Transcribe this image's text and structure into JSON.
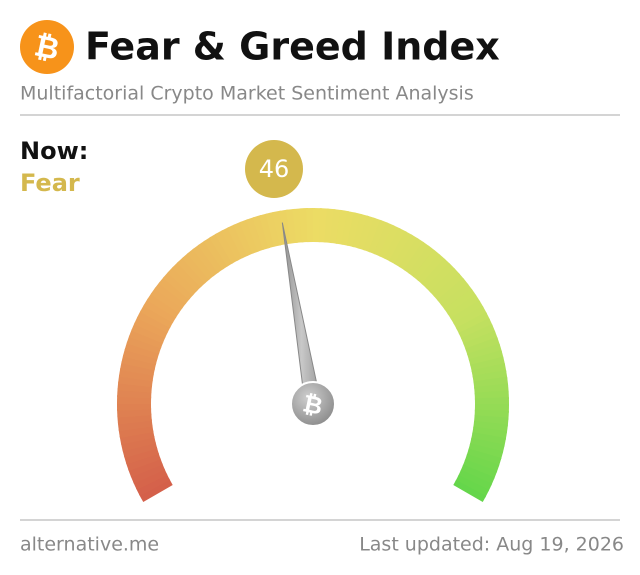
{
  "chart_data": {
    "type": "gauge",
    "title": "Fear & Greed Index",
    "subtitle": "Multifactorial Crypto Market Sentiment Analysis",
    "label": "Now:",
    "classification": "Fear",
    "value": 46,
    "color": "#d4b84d",
    "ylim": [
      0,
      100
    ]
  },
  "footer": {
    "source": "alternative.me",
    "updated": "Last updated: Aug 19, 2026"
  }
}
